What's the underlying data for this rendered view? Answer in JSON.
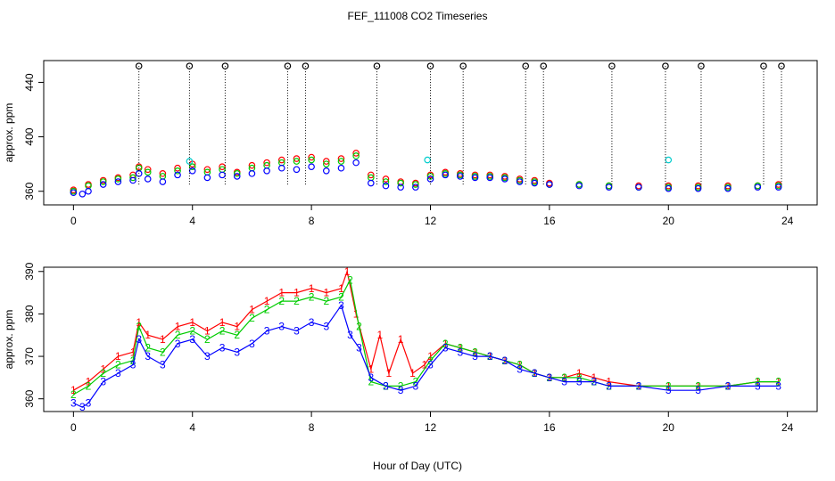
{
  "chart_data": {
    "title": "FEF_111008  CO2 Timeseries",
    "xlabel": "Hour of Day (UTC)",
    "x_ticks": [
      0,
      4,
      8,
      12,
      16,
      20,
      24
    ],
    "xlim": [
      -1,
      25
    ],
    "colors": {
      "s1": "#ff0000",
      "s2": "#00cc00",
      "s3": "#0000ff",
      "cal": "#00cccc",
      "flag": "#000000"
    },
    "panels": [
      {
        "type": "scatter",
        "name": "top",
        "ylabel": "approx. ppm",
        "ylim": [
          350,
          456
        ],
        "y_ticks": [
          360,
          400,
          440
        ],
        "series": [
          {
            "name": "1",
            "color": "#ff0000",
            "x": [
              0,
              0.5,
              1,
              1.5,
              2,
              2.2,
              2.5,
              3,
              3.5,
              4,
              4.5,
              5,
              5.5,
              6,
              6.5,
              7,
              7.5,
              8,
              8.5,
              9,
              9.5,
              10,
              10.5,
              11,
              11.5,
              12,
              12.5,
              13,
              13.5,
              14,
              14.5,
              15,
              15.5,
              16,
              17,
              18,
              19,
              20,
              21,
              22,
              23,
              23.7
            ],
            "y": [
              361,
              365,
              368,
              370,
              372,
              378,
              376,
              373,
              377,
              380,
              376,
              378,
              374,
              379,
              381,
              383,
              384,
              385,
              382,
              384,
              388,
              372,
              369,
              367,
              366,
              372,
              374,
              373,
              372,
              372,
              371,
              369,
              368,
              366,
              365,
              364,
              364,
              364,
              364,
              364,
              364,
              365
            ]
          },
          {
            "name": "2",
            "color": "#00cc00",
            "x": [
              0,
              0.5,
              1,
              1.5,
              2,
              2.2,
              2.5,
              3,
              3.5,
              4,
              4.5,
              5,
              5.5,
              6,
              6.5,
              7,
              7.5,
              8,
              8.5,
              9,
              9.5,
              10,
              10.5,
              11,
              11.5,
              12,
              12.5,
              13,
              13.5,
              14,
              14.5,
              15,
              15.5,
              16,
              17,
              18,
              19,
              20,
              21,
              22,
              23,
              23.7
            ],
            "y": [
              360,
              364,
              367,
              369,
              370,
              377,
              374,
              371,
              375,
              378,
              374,
              376,
              373,
              377,
              379,
              381,
              382,
              383,
              380,
              382,
              386,
              370,
              367,
              366,
              365,
              371,
              373,
              372,
              371,
              371,
              370,
              368,
              367,
              365,
              365,
              364,
              363,
              363,
              363,
              363,
              364,
              364
            ]
          },
          {
            "name": "3",
            "color": "#0000ff",
            "x": [
              0,
              0.3,
              0.5,
              1,
              1.5,
              2,
              2.2,
              2.5,
              3,
              3.5,
              4,
              4.5,
              5,
              5.5,
              6,
              6.5,
              7,
              7.5,
              8,
              8.5,
              9,
              9.5,
              10,
              10.5,
              11,
              11.5,
              12,
              12.5,
              13,
              13.5,
              14,
              14.5,
              15,
              15.5,
              16,
              17,
              18,
              19,
              20,
              21,
              22,
              23,
              23.7
            ],
            "y": [
              359,
              358,
              360,
              365,
              367,
              368,
              373,
              369,
              367,
              372,
              375,
              370,
              372,
              371,
              373,
              375,
              377,
              376,
              378,
              375,
              377,
              381,
              366,
              364,
              363,
              363,
              369,
              372,
              371,
              370,
              370,
              369,
              367,
              366,
              365,
              364,
              363,
              363,
              362,
              362,
              362,
              363,
              363
            ]
          },
          {
            "name": "cal",
            "color": "#00cccc",
            "x": [
              3.9,
              11.9,
              20.0
            ],
            "y": [
              382,
              383,
              383
            ]
          },
          {
            "name": "flag",
            "color": "#000000",
            "x": [
              2.2,
              3.9,
              5.1,
              7.2,
              7.8,
              10.2,
              12.0,
              13.1,
              15.2,
              15.8,
              18.1,
              19.9,
              21.1,
              23.2,
              23.8
            ],
            "y": [
              452,
              452,
              452,
              452,
              452,
              452,
              452,
              452,
              452,
              452,
              452,
              452,
              452,
              452,
              452
            ]
          }
        ]
      },
      {
        "type": "line",
        "name": "bottom",
        "ylabel": "approx. ppm",
        "ylim": [
          357,
          391
        ],
        "y_ticks": [
          360,
          370,
          380,
          390
        ],
        "series": [
          {
            "name": "1",
            "color": "#ff0000",
            "x": [
              0,
              0.5,
              1,
              1.5,
              2,
              2.2,
              2.5,
              3,
              3.5,
              4,
              4.5,
              5,
              5.5,
              6,
              6.5,
              7,
              7.5,
              8,
              8.5,
              9,
              9.2,
              9.5,
              10,
              10.3,
              10.6,
              11,
              11.4,
              11.8,
              12,
              12.5,
              13,
              13.5,
              14,
              14.5,
              15,
              15.5,
              16,
              16.5,
              17,
              17.5,
              18,
              19,
              20,
              21,
              22,
              23,
              23.7
            ],
            "y": [
              362,
              364,
              367,
              370,
              371,
              378,
              375,
              374,
              377,
              378,
              376,
              378,
              377,
              381,
              383,
              385,
              385,
              386,
              385,
              386,
              390,
              380,
              367,
              375,
              366,
              374,
              366,
              368,
              370,
              373,
              372,
              371,
              370,
              369,
              368,
              366,
              365,
              365,
              366,
              365,
              364,
              363,
              363,
              363,
              363,
              364,
              364
            ]
          },
          {
            "name": "2",
            "color": "#00cc00",
            "x": [
              0,
              0.5,
              1,
              1.5,
              2,
              2.2,
              2.5,
              3,
              3.5,
              4,
              4.5,
              5,
              5.5,
              6,
              6.5,
              7,
              7.5,
              8,
              8.5,
              9,
              9.3,
              9.6,
              10,
              10.5,
              11,
              11.5,
              12,
              12.5,
              13,
              13.5,
              14,
              14.5,
              15,
              15.5,
              16,
              16.5,
              17,
              17.5,
              18,
              19,
              20,
              21,
              22,
              23,
              23.7
            ],
            "y": [
              361,
              363,
              366,
              368,
              369,
              377,
              372,
              371,
              375,
              376,
              374,
              376,
              375,
              379,
              381,
              383,
              383,
              384,
              383,
              384,
              388,
              377,
              364,
              363,
              363,
              364,
              369,
              373,
              372,
              371,
              370,
              369,
              368,
              366,
              365,
              365,
              365,
              364,
              363,
              363,
              363,
              363,
              363,
              364,
              364
            ]
          },
          {
            "name": "3",
            "color": "#0000ff",
            "x": [
              0,
              0.3,
              0.5,
              1,
              1.5,
              2,
              2.2,
              2.5,
              3,
              3.5,
              4,
              4.5,
              5,
              5.5,
              6,
              6.5,
              7,
              7.5,
              8,
              8.5,
              9,
              9.3,
              9.6,
              10,
              10.5,
              11,
              11.5,
              12,
              12.5,
              13,
              13.5,
              14,
              14.5,
              15,
              15.5,
              16,
              16.5,
              17,
              17.5,
              18,
              19,
              20,
              21,
              22,
              23,
              23.7
            ],
            "y": [
              359,
              358,
              359,
              364,
              366,
              368,
              374,
              370,
              368,
              373,
              374,
              370,
              372,
              371,
              373,
              376,
              377,
              376,
              378,
              377,
              382,
              375,
              372,
              365,
              363,
              362,
              363,
              368,
              372,
              371,
              370,
              370,
              369,
              367,
              366,
              365,
              364,
              364,
              364,
              363,
              363,
              362,
              362,
              363,
              363,
              363
            ]
          }
        ]
      }
    ]
  }
}
